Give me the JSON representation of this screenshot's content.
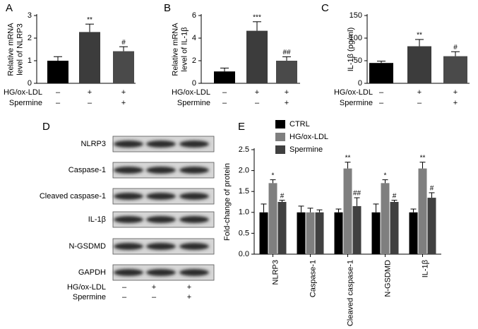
{
  "chart_data": [
    {
      "type": "bar",
      "panel": "A",
      "ylabel": [
        "Relative mRNA",
        "level of NLRP3"
      ],
      "values": [
        1.0,
        2.27,
        1.42
      ],
      "errors": [
        0.18,
        0.35,
        0.2
      ],
      "annotations": [
        null,
        "**",
        "#"
      ],
      "colors": [
        "#000000",
        "#3c3c3c",
        "#4a4a4a"
      ],
      "ylim": [
        0,
        3
      ],
      "yticks": [
        0,
        1,
        2,
        3
      ],
      "treatments": [
        {
          "name": "HG/ox-LDL",
          "marks": [
            "–",
            "+",
            "+"
          ]
        },
        {
          "name": "Spermine",
          "marks": [
            "–",
            "–",
            "+"
          ]
        }
      ]
    },
    {
      "type": "bar",
      "panel": "B",
      "ylabel": [
        "Relative mRNA",
        "level of IL-1β"
      ],
      "values": [
        1.05,
        4.65,
        2.0
      ],
      "errors": [
        0.3,
        0.8,
        0.35
      ],
      "annotations": [
        null,
        "***",
        "##"
      ],
      "colors": [
        "#000000",
        "#3c3c3c",
        "#4a4a4a"
      ],
      "ylim": [
        0,
        6
      ],
      "yticks": [
        0,
        2,
        4,
        6
      ],
      "treatments": [
        {
          "name": "HG/ox-LDL",
          "marks": [
            "–",
            "+",
            "+"
          ]
        },
        {
          "name": "Spermine",
          "marks": [
            "–",
            "–",
            "+"
          ]
        }
      ]
    },
    {
      "type": "bar",
      "panel": "C",
      "ylabel": [
        "IL-1β (pg/ml)"
      ],
      "values": [
        45,
        82,
        60
      ],
      "errors": [
        4,
        15,
        10
      ],
      "annotations": [
        null,
        "**",
        "#"
      ],
      "colors": [
        "#000000",
        "#3c3c3c",
        "#4a4a4a"
      ],
      "ylim": [
        0,
        150
      ],
      "yticks": [
        0,
        50,
        100,
        150
      ],
      "treatments": [
        {
          "name": "HG/ox-LDL",
          "marks": [
            "–",
            "+",
            "+"
          ]
        },
        {
          "name": "Spermine",
          "marks": [
            "–",
            "–",
            "+"
          ]
        }
      ]
    },
    {
      "type": "grouped_bar",
      "panel": "E",
      "ylabel": [
        "Fold-change of protein"
      ],
      "categories": [
        "NLRP3",
        "Caspase-1",
        "Cleaved caspase-1",
        "N-GSDMD",
        "IL-1β"
      ],
      "series": [
        {
          "name": "CTRL",
          "color": "#000000",
          "values": [
            1.0,
            1.0,
            1.0,
            1.0,
            1.0
          ],
          "errors": [
            0.2,
            0.15,
            0.08,
            0.2,
            0.08
          ],
          "annotations": [
            null,
            null,
            null,
            null,
            null
          ]
        },
        {
          "name": "HG/ox-LDL",
          "color": "#7f7f7f",
          "values": [
            1.7,
            1.0,
            2.05,
            1.7,
            2.05
          ],
          "errors": [
            0.08,
            0.1,
            0.15,
            0.08,
            0.15
          ],
          "annotations": [
            "*",
            null,
            "**",
            "*",
            "**"
          ]
        },
        {
          "name": "Spermine",
          "color": "#404040",
          "values": [
            1.25,
            1.0,
            1.15,
            1.25,
            1.35
          ],
          "errors": [
            0.04,
            0.06,
            0.2,
            0.04,
            0.12
          ],
          "annotations": [
            "#",
            null,
            "##",
            "#",
            "#"
          ]
        }
      ],
      "ylim": [
        0,
        2.5
      ],
      "yticks": [
        {
          "value": 0,
          "label": "0.0"
        },
        0.5,
        {
          "value": 1,
          "label": "1.0"
        },
        1.5,
        {
          "value": 2,
          "label": "2.0"
        },
        2.5
      ],
      "legend": "top-left"
    }
  ],
  "blot": {
    "panel": "D",
    "rows": [
      "NLRP3",
      "Caspase-1",
      "Cleaved caspase-1",
      "IL-1β",
      "N-GSDMD",
      "GAPDH"
    ],
    "treatments": [
      {
        "name": "HG/ox-LDL",
        "marks": [
          "–",
          "+",
          "+"
        ]
      },
      {
        "name": "Spermine",
        "marks": [
          "–",
          "–",
          "+"
        ]
      }
    ]
  }
}
